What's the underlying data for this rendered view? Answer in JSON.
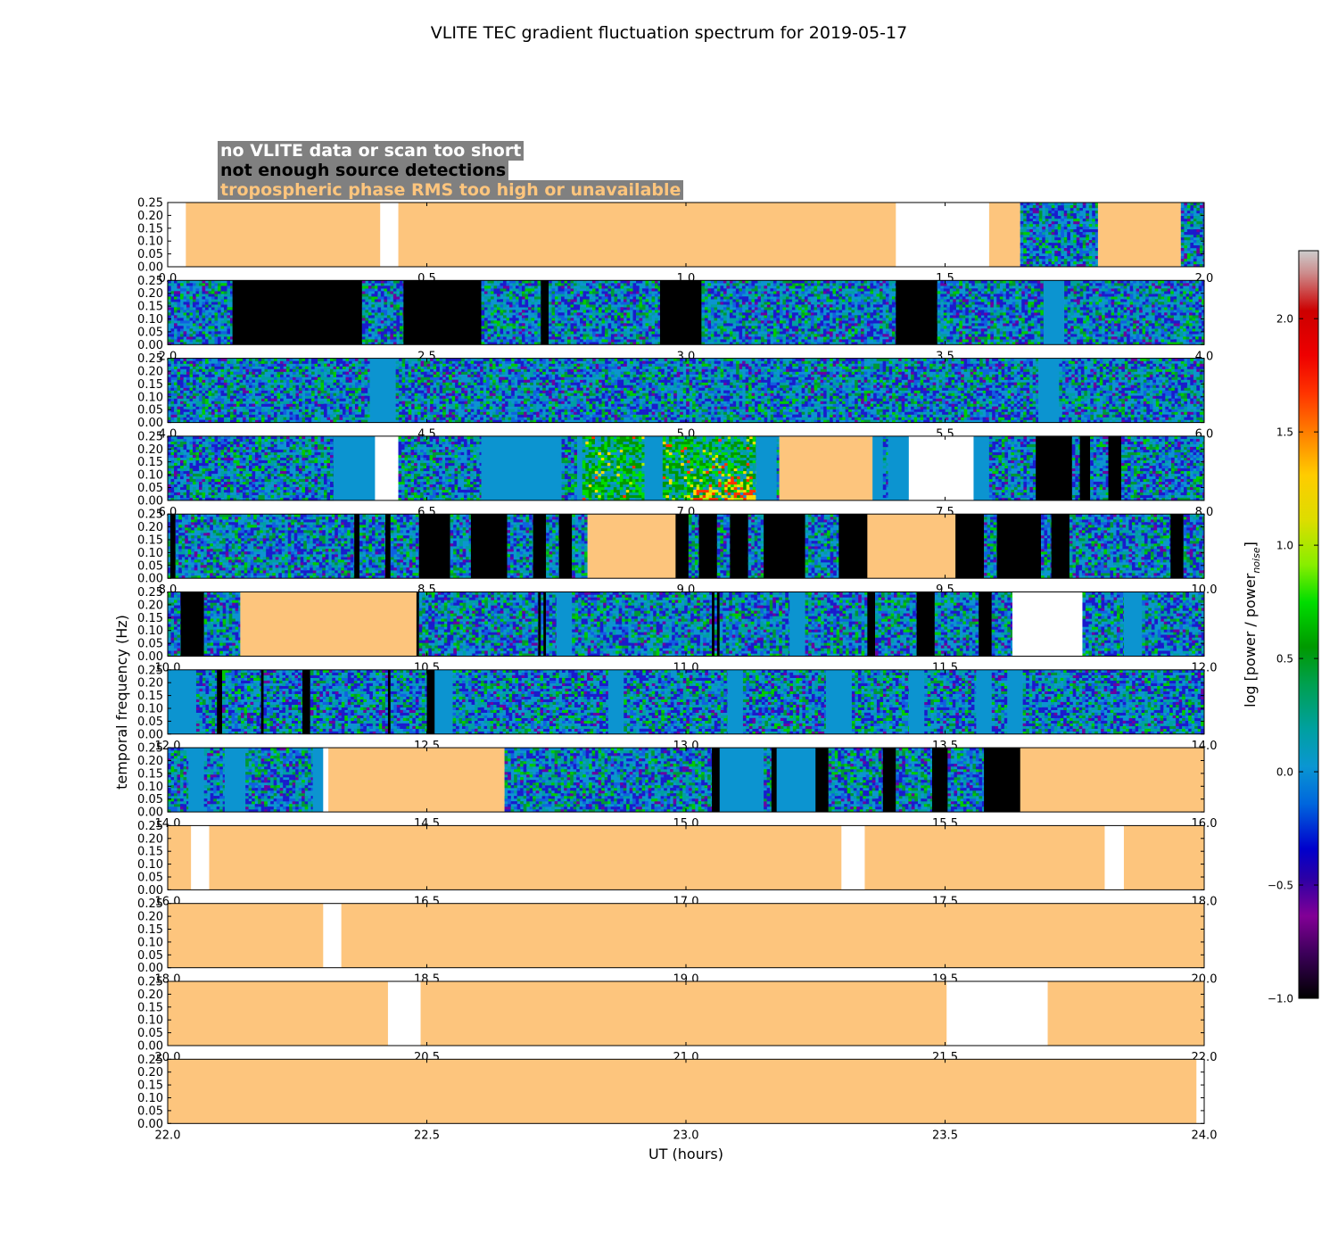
{
  "chart_data": {
    "type": "heatmap",
    "title": "VLITE TEC gradient fluctuation spectrum for 2019-05-17",
    "xlabel": "UT (hours)",
    "ylabel": "temporal frequency (Hz)",
    "ylim": [
      0,
      0.25
    ],
    "ytick_labels": [
      "0.00",
      "0.05",
      "0.10",
      "0.15",
      "0.20",
      "0.25"
    ],
    "colorbar": {
      "label": "log [power / power",
      "label_sub": "noise",
      "label_end": "]",
      "range": [
        -1.0,
        2.3
      ],
      "tick_values": [
        -1.0,
        -0.5,
        0.0,
        0.5,
        1.0,
        1.5,
        2.0
      ],
      "tick_labels": [
        "−1.0",
        "−0.5",
        "0.0",
        "0.5",
        "1.0",
        "1.5",
        "2.0"
      ]
    },
    "legend": [
      {
        "label": "no VLITE data or scan too short",
        "color": "#ffffff"
      },
      {
        "label": "not enough source detections",
        "color": "#000000"
      },
      {
        "label": "tropospheric phase RMS too high or unavailable",
        "color": "#fdc57d"
      }
    ],
    "colors": {
      "nodata": "#ffffff",
      "nodet": "#000000",
      "tropo": "#fdc57d",
      "baseline": "#0c94d0"
    },
    "rows": [
      {
        "range": [
          0,
          2
        ],
        "tick_labels": [
          "0.0",
          "0.5",
          "1.0",
          "1.5",
          "2.0"
        ],
        "segments": [
          [
            "nodata",
            0,
            0.035
          ],
          [
            "tropo",
            0.035,
            0.41
          ],
          [
            "nodata",
            0.41,
            0.445
          ],
          [
            "tropo",
            0.445,
            1.405
          ],
          [
            "nodata",
            1.405,
            1.585
          ],
          [
            "tropo",
            1.585,
            1.645
          ],
          [
            "spec",
            1.645,
            1.795
          ],
          [
            "tropo",
            1.795,
            1.955
          ],
          [
            "spec",
            1.955,
            2.0
          ]
        ]
      },
      {
        "range": [
          2,
          4
        ],
        "tick_labels": [
          "2.0",
          "2.5",
          "3.0",
          "3.5",
          "4.0"
        ],
        "segments": [
          [
            "spec",
            2.0,
            2.125
          ],
          [
            "nodet",
            2.125,
            2.375
          ],
          [
            "spec",
            2.375,
            2.455
          ],
          [
            "nodet",
            2.455,
            2.605
          ],
          [
            "spec",
            2.605,
            2.72
          ],
          [
            "nodet",
            2.72,
            2.735
          ],
          [
            "spec",
            2.735,
            2.95
          ],
          [
            "nodet",
            2.95,
            3.03
          ],
          [
            "spec",
            3.03,
            3.405
          ],
          [
            "nodet",
            3.405,
            3.485
          ],
          [
            "spec",
            3.485,
            3.69
          ],
          [
            "base",
            3.69,
            3.73
          ],
          [
            "spec",
            3.73,
            4.0
          ]
        ]
      },
      {
        "range": [
          4,
          6
        ],
        "tick_labels": [
          "4.0",
          "4.5",
          "5.0",
          "5.5",
          "6.0"
        ],
        "segments": [
          [
            "spec",
            4.0,
            4.39
          ],
          [
            "base",
            4.39,
            4.44
          ],
          [
            "spec",
            4.44,
            5.68
          ],
          [
            "base",
            5.68,
            5.72
          ],
          [
            "spec",
            5.72,
            6.0
          ]
        ]
      },
      {
        "range": [
          6,
          8
        ],
        "tick_labels": [
          "6.0",
          "6.5",
          "7.0",
          "7.5",
          "8.0"
        ],
        "segments": [
          [
            "spec",
            6.0,
            6.32
          ],
          [
            "base",
            6.32,
            6.4
          ],
          [
            "nodata",
            6.4,
            6.445
          ],
          [
            "spec",
            6.445,
            6.605
          ],
          [
            "base",
            6.605,
            6.76
          ],
          [
            "spec",
            6.76,
            6.79
          ],
          [
            "base",
            6.79,
            6.8
          ],
          [
            "hot",
            6.8,
            6.92
          ],
          [
            "base",
            6.92,
            6.955
          ],
          [
            "hot",
            6.955,
            6.99
          ],
          [
            "hot",
            6.99,
            7.135
          ],
          [
            "base",
            7.135,
            7.175
          ],
          [
            "spec",
            7.175,
            7.18
          ],
          [
            "tropo",
            7.18,
            7.36
          ],
          [
            "base",
            7.36,
            7.38
          ],
          [
            "spec",
            7.38,
            7.39
          ],
          [
            "base",
            7.39,
            7.43
          ],
          [
            "nodata",
            7.43,
            7.555
          ],
          [
            "base",
            7.555,
            7.585
          ],
          [
            "spec",
            7.585,
            7.675
          ],
          [
            "nodet",
            7.675,
            7.745
          ],
          [
            "spec",
            7.745,
            7.76
          ],
          [
            "nodet",
            7.76,
            7.78
          ],
          [
            "spec",
            7.78,
            7.815
          ],
          [
            "nodet",
            7.815,
            7.84
          ],
          [
            "spec",
            7.84,
            8.0
          ]
        ]
      },
      {
        "range": [
          8,
          10
        ],
        "tick_labels": [
          "8.0",
          "8.5",
          "9.0",
          "9.5",
          "10.0"
        ],
        "segments": [
          [
            "spec",
            8.0,
            8.005
          ],
          [
            "nodet",
            8.005,
            8.015
          ],
          [
            "spec",
            8.015,
            8.36
          ],
          [
            "nodet",
            8.36,
            8.37
          ],
          [
            "spec",
            8.37,
            8.42
          ],
          [
            "nodet",
            8.42,
            8.43
          ],
          [
            "spec",
            8.43,
            8.485
          ],
          [
            "nodet",
            8.485,
            8.545
          ],
          [
            "spec",
            8.545,
            8.585
          ],
          [
            "nodet",
            8.585,
            8.655
          ],
          [
            "spec",
            8.655,
            8.705
          ],
          [
            "nodet",
            8.705,
            8.73
          ],
          [
            "spec",
            8.73,
            8.755
          ],
          [
            "nodet",
            8.755,
            8.78
          ],
          [
            "spec",
            8.78,
            8.81
          ],
          [
            "tropo",
            8.81,
            8.98
          ],
          [
            "nodet",
            8.98,
            9.005
          ],
          [
            "spec",
            9.005,
            9.025
          ],
          [
            "nodet",
            9.025,
            9.06
          ],
          [
            "spec",
            9.06,
            9.085
          ],
          [
            "nodet",
            9.085,
            9.12
          ],
          [
            "spec",
            9.12,
            9.15
          ],
          [
            "nodet",
            9.15,
            9.23
          ],
          [
            "spec",
            9.23,
            9.295
          ],
          [
            "nodet",
            9.295,
            9.35
          ],
          [
            "tropo",
            9.35,
            9.52
          ],
          [
            "nodet",
            9.52,
            9.575
          ],
          [
            "spec",
            9.575,
            9.6
          ],
          [
            "nodet",
            9.6,
            9.685
          ],
          [
            "spec",
            9.685,
            9.705
          ],
          [
            "nodet",
            9.705,
            9.74
          ],
          [
            "spec",
            9.74,
            9.935
          ],
          [
            "nodet",
            9.935,
            9.96
          ],
          [
            "spec",
            9.96,
            10.0
          ]
        ]
      },
      {
        "range": [
          10,
          12
        ],
        "tick_labels": [
          "10.0",
          "10.5",
          "11.0",
          "11.5",
          "12.0"
        ],
        "segments": [
          [
            "spec",
            10.0,
            10.025
          ],
          [
            "nodet",
            10.025,
            10.07
          ],
          [
            "spec",
            10.07,
            10.14
          ],
          [
            "tropo",
            10.14,
            10.48
          ],
          [
            "nodet",
            10.48,
            10.485
          ],
          [
            "spec",
            10.485,
            10.715
          ],
          [
            "nodet",
            10.715,
            10.72
          ],
          [
            "spec",
            10.72,
            10.725
          ],
          [
            "nodet",
            10.725,
            10.73
          ],
          [
            "spec",
            10.73,
            10.75
          ],
          [
            "base",
            10.75,
            10.78
          ],
          [
            "spec",
            10.78,
            11.05
          ],
          [
            "nodet",
            11.05,
            11.055
          ],
          [
            "spec",
            11.055,
            11.06
          ],
          [
            "nodet",
            11.06,
            11.065
          ],
          [
            "spec",
            11.065,
            11.2
          ],
          [
            "base",
            11.2,
            11.23
          ],
          [
            "spec",
            11.23,
            11.35
          ],
          [
            "nodet",
            11.35,
            11.365
          ],
          [
            "spec",
            11.365,
            11.445
          ],
          [
            "nodet",
            11.445,
            11.48
          ],
          [
            "spec",
            11.48,
            11.565
          ],
          [
            "nodet",
            11.565,
            11.59
          ],
          [
            "spec",
            11.59,
            11.63
          ],
          [
            "nodata",
            11.63,
            11.765
          ],
          [
            "spec",
            11.765,
            11.845
          ],
          [
            "base",
            11.845,
            11.88
          ],
          [
            "spec",
            11.88,
            12.0
          ]
        ]
      },
      {
        "range": [
          12,
          14
        ],
        "tick_labels": [
          "12.0",
          "12.5",
          "13.0",
          "13.5",
          "14.0"
        ],
        "segments": [
          [
            "base",
            12.0,
            12.055
          ],
          [
            "spec",
            12.055,
            12.095
          ],
          [
            "nodet",
            12.095,
            12.105
          ],
          [
            "spec",
            12.105,
            12.18
          ],
          [
            "nodet",
            12.18,
            12.185
          ],
          [
            "spec",
            12.185,
            12.26
          ],
          [
            "nodet",
            12.26,
            12.275
          ],
          [
            "spec",
            12.275,
            12.425
          ],
          [
            "nodet",
            12.425,
            12.43
          ],
          [
            "spec",
            12.43,
            12.5
          ],
          [
            "nodet",
            12.5,
            12.515
          ],
          [
            "base",
            12.515,
            12.55
          ],
          [
            "spec",
            12.55,
            12.85
          ],
          [
            "base",
            12.85,
            12.88
          ],
          [
            "spec",
            12.88,
            13.08
          ],
          [
            "base",
            13.08,
            13.11
          ],
          [
            "spec",
            13.11,
            13.27
          ],
          [
            "base",
            13.27,
            13.32
          ],
          [
            "spec",
            13.32,
            13.43
          ],
          [
            "base",
            13.43,
            13.46
          ],
          [
            "spec",
            13.46,
            13.56
          ],
          [
            "base",
            13.56,
            13.59
          ],
          [
            "spec",
            13.59,
            13.62
          ],
          [
            "base",
            13.62,
            13.65
          ],
          [
            "spec",
            13.65,
            14.0
          ]
        ]
      },
      {
        "range": [
          14,
          16
        ],
        "tick_labels": [
          "14.0",
          "14.5",
          "15.0",
          "15.5",
          "16.0"
        ],
        "segments": [
          [
            "spec",
            14.0,
            14.04
          ],
          [
            "base",
            14.04,
            14.07
          ],
          [
            "spec",
            14.07,
            14.11
          ],
          [
            "base",
            14.11,
            14.15
          ],
          [
            "spec",
            14.15,
            14.28
          ],
          [
            "base",
            14.28,
            14.3
          ],
          [
            "nodata",
            14.3,
            14.31
          ],
          [
            "tropo",
            14.31,
            14.65
          ],
          [
            "spec",
            14.65,
            15.05
          ],
          [
            "nodet",
            15.05,
            15.065
          ],
          [
            "base",
            15.065,
            15.15
          ],
          [
            "spec",
            15.15,
            15.165
          ],
          [
            "nodet",
            15.165,
            15.175
          ],
          [
            "base",
            15.175,
            15.25
          ],
          [
            "nodet",
            15.25,
            15.275
          ],
          [
            "spec",
            15.275,
            15.38
          ],
          [
            "nodet",
            15.38,
            15.405
          ],
          [
            "spec",
            15.405,
            15.475
          ],
          [
            "nodet",
            15.475,
            15.505
          ],
          [
            "spec",
            15.505,
            15.575
          ],
          [
            "nodet",
            15.575,
            15.645
          ],
          [
            "tropo",
            15.645,
            16.0
          ]
        ]
      },
      {
        "range": [
          16,
          18
        ],
        "tick_labels": [
          "16.0",
          "16.5",
          "17.0",
          "17.5",
          "18.0"
        ],
        "segments": [
          [
            "tropo",
            16.0,
            16.045
          ],
          [
            "nodata",
            16.045,
            16.08
          ],
          [
            "tropo",
            16.08,
            17.3
          ],
          [
            "nodata",
            17.3,
            17.345
          ],
          [
            "tropo",
            17.345,
            17.808
          ],
          [
            "nodata",
            17.808,
            17.845
          ],
          [
            "tropo",
            17.845,
            18.0
          ]
        ]
      },
      {
        "range": [
          18,
          20
        ],
        "tick_labels": [
          "18.0",
          "18.5",
          "19.0",
          "19.5",
          "20.0"
        ],
        "segments": [
          [
            "tropo",
            18.0,
            18.3
          ],
          [
            "nodata",
            18.3,
            18.335
          ],
          [
            "tropo",
            18.335,
            20.0
          ]
        ]
      },
      {
        "range": [
          20,
          22
        ],
        "tick_labels": [
          "20.0",
          "20.5",
          "21.0",
          "21.5",
          "22.0"
        ],
        "segments": [
          [
            "tropo",
            20.0,
            20.425
          ],
          [
            "nodata",
            20.425,
            20.488
          ],
          [
            "tropo",
            20.488,
            21.503
          ],
          [
            "nodata",
            21.503,
            21.698
          ],
          [
            "tropo",
            21.698,
            22.0
          ]
        ]
      },
      {
        "range": [
          22,
          24
        ],
        "tick_labels": [
          "22.0",
          "22.5",
          "23.0",
          "23.5",
          "24.0"
        ],
        "segments": [
          [
            "tropo",
            22.0,
            23.985
          ],
          [
            "nodata",
            23.985,
            24.0
          ]
        ]
      }
    ]
  }
}
